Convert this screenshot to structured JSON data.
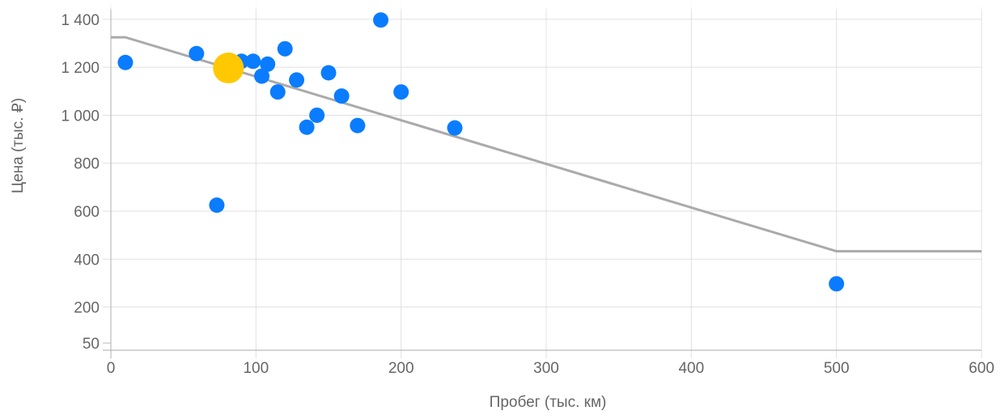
{
  "chart_data": {
    "type": "scatter",
    "xlabel": "Пробег (тыс. км)",
    "ylabel": "Цена (тыс. ₽)",
    "xlim": [
      0,
      600
    ],
    "ylim": [
      20,
      1440
    ],
    "grid": true,
    "x_ticks": [
      0,
      100,
      200,
      300,
      400,
      500,
      600
    ],
    "y_ticks": [
      50,
      200,
      400,
      600,
      800,
      1000,
      1200,
      1400
    ],
    "y_tick_labels": [
      "50",
      "200",
      "400",
      "600",
      "800",
      "1 000",
      "1 200",
      "1 400"
    ],
    "series": [
      {
        "kind": "scatter",
        "color": "#0a7cff",
        "points": [
          {
            "x": 10,
            "y": 1220
          },
          {
            "x": 59,
            "y": 1257
          },
          {
            "x": 73,
            "y": 625
          },
          {
            "x": 83,
            "y": 1225
          },
          {
            "x": 90,
            "y": 1225
          },
          {
            "x": 98,
            "y": 1225
          },
          {
            "x": 104,
            "y": 1163
          },
          {
            "x": 108,
            "y": 1213
          },
          {
            "x": 115,
            "y": 1097
          },
          {
            "x": 120,
            "y": 1277
          },
          {
            "x": 128,
            "y": 1147
          },
          {
            "x": 135,
            "y": 950
          },
          {
            "x": 142,
            "y": 1000
          },
          {
            "x": 150,
            "y": 1177
          },
          {
            "x": 159,
            "y": 1080
          },
          {
            "x": 170,
            "y": 957
          },
          {
            "x": 186,
            "y": 1397
          },
          {
            "x": 200,
            "y": 1097
          },
          {
            "x": 237,
            "y": 947
          },
          {
            "x": 500,
            "y": 297
          }
        ]
      },
      {
        "kind": "highlight",
        "color": "#ffc800",
        "points": [
          {
            "x": 81,
            "y": 1197
          }
        ]
      },
      {
        "kind": "line",
        "color": "#aaaaaa",
        "points": [
          {
            "x": 0,
            "y": 1325
          },
          {
            "x": 10,
            "y": 1325
          },
          {
            "x": 500,
            "y": 433
          },
          {
            "x": 600,
            "y": 433
          }
        ]
      }
    ]
  }
}
